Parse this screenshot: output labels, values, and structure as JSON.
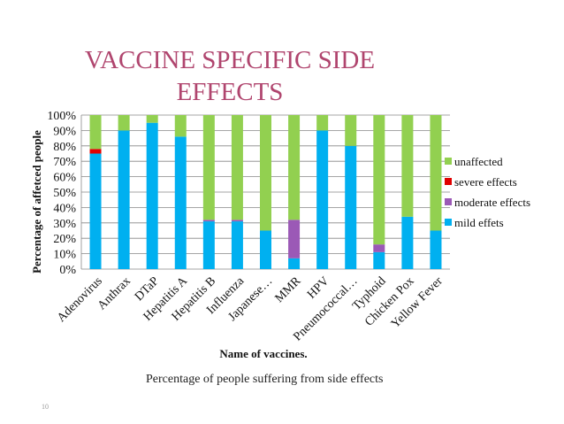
{
  "slide": {
    "title_line1": "VACCINE SPECIFIC SIDE",
    "title_line2": "EFFECTS",
    "caption": "Percentage of people suffering from side effects",
    "slide_number": "10",
    "title_color": "#b0456e"
  },
  "chart_data": {
    "type": "bar",
    "stacked": true,
    "percent": true,
    "categories": [
      "Adenovirus",
      "Anthrax",
      "DTaP",
      "Hepatitis A",
      "Hepatitis B",
      "Influenza",
      "Japanese…",
      "MMR",
      "HPV",
      "Pneumococcal…",
      "Typhoid",
      "Chicken Pox",
      "Yellow Fever"
    ],
    "series": [
      {
        "name": "mild effets",
        "color": "#00b0f0",
        "values": [
          75,
          90,
          95,
          86,
          31,
          31,
          25,
          7,
          90,
          80,
          11,
          34,
          25
        ]
      },
      {
        "name": "moderate effects",
        "color": "#9b59b6",
        "values": [
          0,
          0,
          0,
          0,
          1,
          1,
          0,
          25,
          0,
          0,
          5,
          0,
          0
        ]
      },
      {
        "name": "severe effects",
        "color": "#e00000",
        "values": [
          3,
          0,
          0,
          0,
          0,
          0,
          0,
          0,
          0,
          0,
          0,
          0,
          0
        ]
      },
      {
        "name": "unaffected",
        "color": "#92d050",
        "values": [
          22,
          10,
          5,
          14,
          68,
          68,
          75,
          68,
          10,
          20,
          84,
          66,
          75
        ]
      }
    ],
    "yticks": [
      "0%",
      "10%",
      "20%",
      "30%",
      "40%",
      "50%",
      "60%",
      "70%",
      "80%",
      "90%",
      "100%"
    ],
    "ylim": [
      0,
      100
    ],
    "xlabel": "Name of vaccines.",
    "ylabel": "Percentage of affetced people",
    "legend_position": "right",
    "legend_order": [
      "unaffected",
      "severe effects",
      "moderate effects",
      "mild effets"
    ],
    "grid": true
  }
}
